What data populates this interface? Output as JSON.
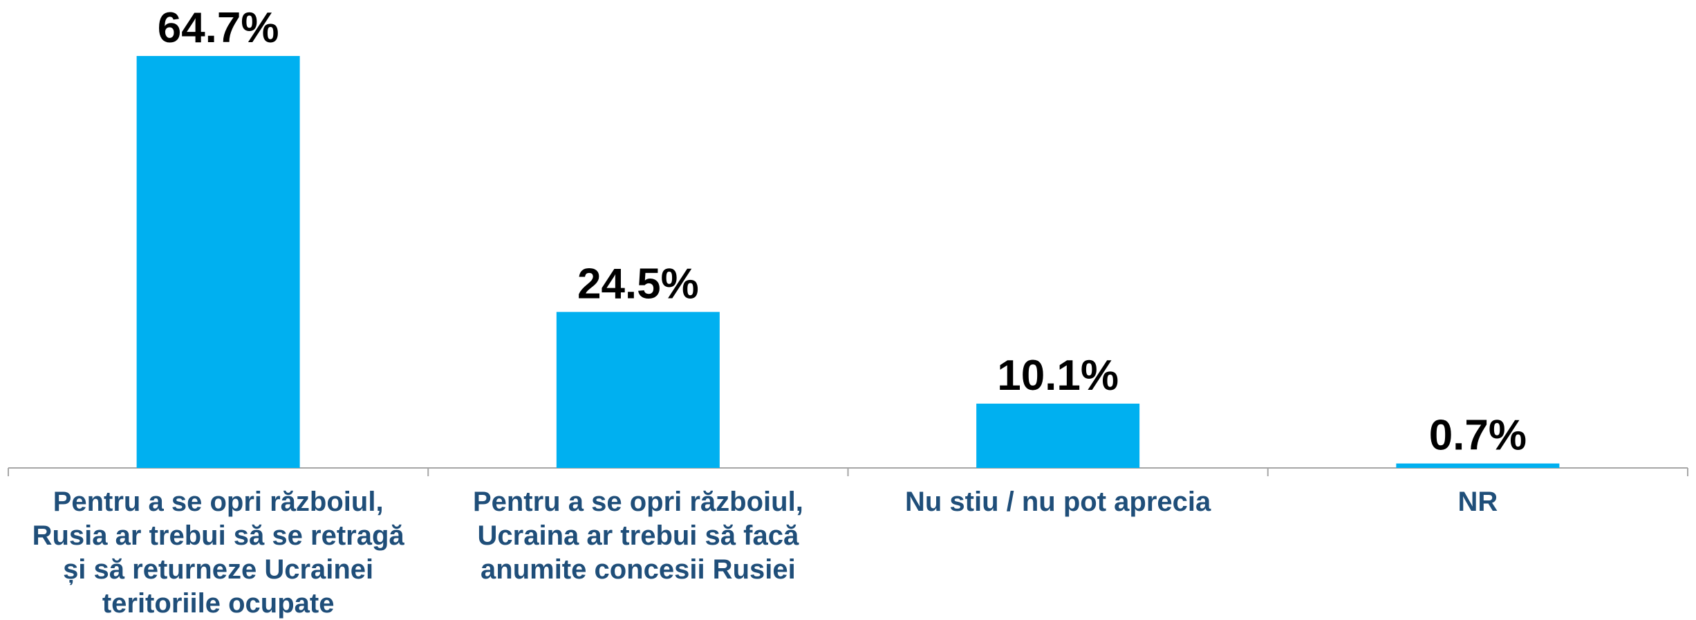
{
  "chart_data": {
    "type": "bar",
    "categories": [
      "Pentru a se opri războiul, Rusia ar trebui să se retragă și să returneze Ucrainei teritoriile ocupate",
      "Pentru a se opri războiul, Ucraina ar trebui să facă anumite concesii Rusiei",
      "Nu stiu / nu pot aprecia",
      "NR"
    ],
    "values": [
      64.7,
      24.5,
      10.1,
      0.7
    ],
    "value_labels": [
      "64.7%",
      "24.5%",
      "10.1%",
      "0.7%"
    ],
    "color": "#00b0f0"
  }
}
